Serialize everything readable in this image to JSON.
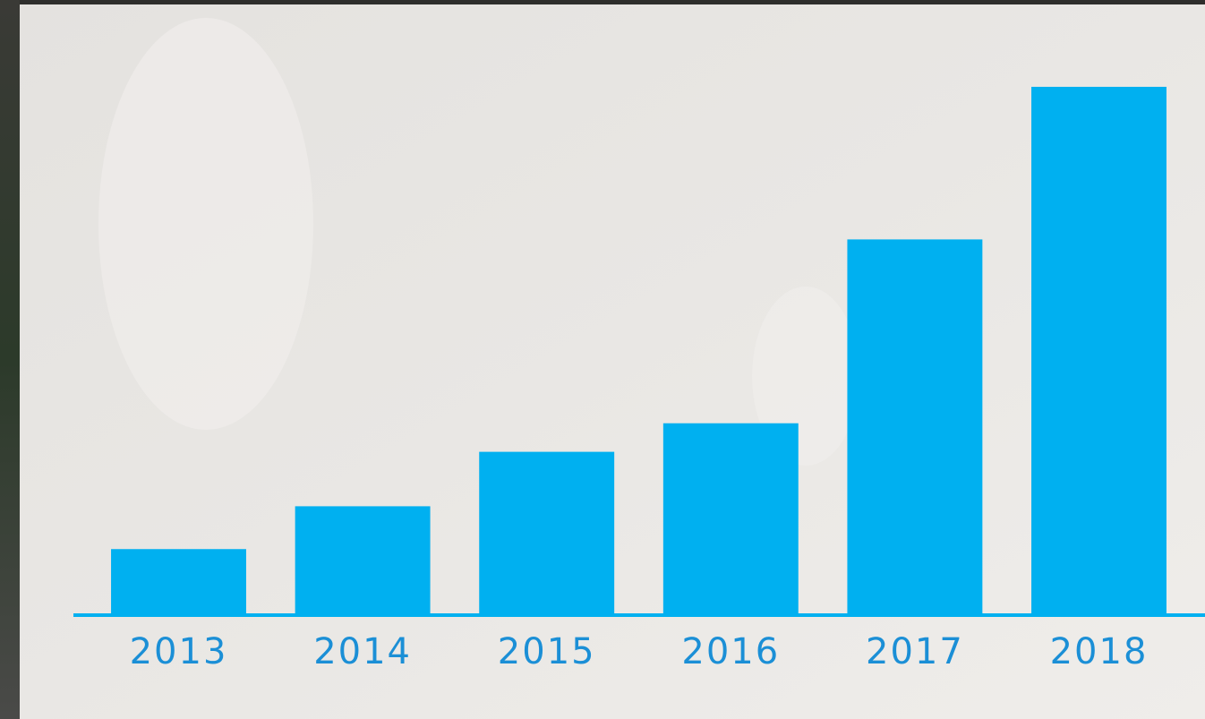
{
  "chart_data": {
    "type": "bar",
    "categories": [
      "2013",
      "2014",
      "2015",
      "2016",
      "2017",
      "2018"
    ],
    "values": [
      72,
      120,
      181,
      213,
      419,
      590
    ],
    "color": "#00b0f0",
    "ylim": [
      0,
      600
    ]
  }
}
